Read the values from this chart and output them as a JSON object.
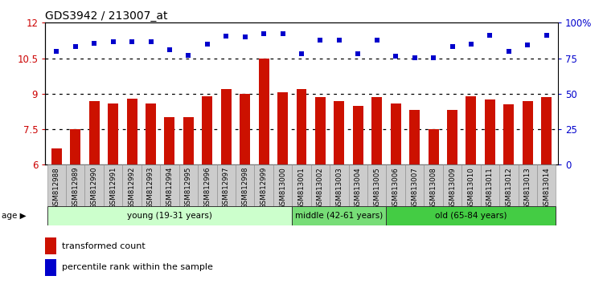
{
  "title": "GDS3942 / 213007_at",
  "samples": [
    "GSM812988",
    "GSM812989",
    "GSM812990",
    "GSM812991",
    "GSM812992",
    "GSM812993",
    "GSM812994",
    "GSM812995",
    "GSM812996",
    "GSM812997",
    "GSM812998",
    "GSM812999",
    "GSM813000",
    "GSM813001",
    "GSM813002",
    "GSM813003",
    "GSM813004",
    "GSM813005",
    "GSM813006",
    "GSM813007",
    "GSM813008",
    "GSM813009",
    "GSM813010",
    "GSM813011",
    "GSM813012",
    "GSM813013",
    "GSM813014"
  ],
  "bar_values": [
    6.7,
    7.5,
    8.7,
    8.6,
    8.8,
    8.6,
    8.0,
    8.0,
    8.9,
    9.2,
    9.0,
    10.5,
    9.05,
    9.2,
    8.85,
    8.7,
    8.5,
    8.85,
    8.6,
    8.3,
    7.5,
    8.3,
    8.9,
    8.75,
    8.55,
    8.7,
    8.85
  ],
  "percentile_right": [
    80,
    83,
    85.5,
    86.8,
    86.5,
    86.8,
    80.8,
    77,
    84.8,
    90.8,
    90.0,
    92.0,
    92.5,
    78.0,
    87.5,
    88.0,
    78.0,
    88.0,
    76.3,
    75.3,
    75.3,
    83.3,
    85.0,
    91.3,
    80.0,
    84.2,
    91.3
  ],
  "bar_color": "#cc1100",
  "dot_color": "#0000cc",
  "ylim_left": [
    6.0,
    12.0
  ],
  "ylim_right": [
    0,
    100
  ],
  "yticks_left": [
    6.0,
    7.5,
    9.0,
    10.5,
    12.0
  ],
  "yticks_right": [
    0,
    25,
    50,
    75,
    100
  ],
  "ytick_labels_left": [
    "6",
    "7.5",
    "9",
    "10.5",
    "12"
  ],
  "ytick_labels_right": [
    "0",
    "25",
    "50",
    "75",
    "100%"
  ],
  "hlines": [
    7.5,
    9.0,
    10.5
  ],
  "age_groups": [
    {
      "label": "young (19-31 years)",
      "start": 0,
      "end": 13,
      "color": "#ccffcc"
    },
    {
      "label": "middle (42-61 years)",
      "start": 13,
      "end": 18,
      "color": "#77dd77"
    },
    {
      "label": "old (65-84 years)",
      "start": 18,
      "end": 27,
      "color": "#44cc44"
    }
  ],
  "legend_bar_label": "transformed count",
  "legend_dot_label": "percentile rank within the sample",
  "age_label": "age",
  "tick_label_color_left": "#cc0000",
  "tick_label_color_right": "#0000cc",
  "xtick_bg_color": "#cccccc",
  "plot_bg_color": "#ffffff"
}
